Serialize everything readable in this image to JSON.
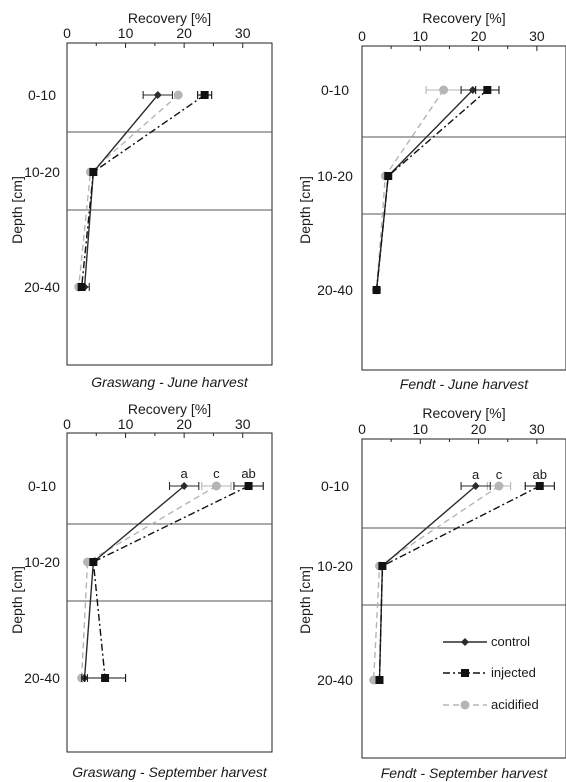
{
  "chart_data": [
    {
      "type": "line",
      "title": "Graswang - June harvest",
      "xlabel": "Recovery [%]",
      "ylabel": "Depth [cm]",
      "xticks": [
        "0",
        "10",
        "20",
        "30"
      ],
      "xlim": [
        0,
        35
      ],
      "categories": [
        "0-10",
        "10-20",
        "20-40"
      ],
      "series": [
        {
          "name": "control",
          "values": [
            15.5,
            4.5,
            3.0
          ],
          "errors": [
            2.5,
            0.3,
            0.8
          ]
        },
        {
          "name": "injected",
          "values": [
            23.5,
            4.5,
            2.5
          ],
          "errors": [
            1.2,
            0.3,
            0.5
          ]
        },
        {
          "name": "acidified",
          "values": [
            19.0,
            4.0,
            2.0
          ],
          "errors": [
            0,
            0,
            0
          ]
        }
      ],
      "significance_labels": [
        "",
        "",
        ""
      ]
    },
    {
      "type": "line",
      "title": "Fendt - June harvest",
      "xlabel": "Recovery [%]",
      "ylabel": "Depth [cm]",
      "xticks": [
        "0",
        "10",
        "20",
        "30"
      ],
      "xlim": [
        0,
        35
      ],
      "categories": [
        "0-10",
        "10-20",
        "20-40"
      ],
      "series": [
        {
          "name": "control",
          "values": [
            19.0,
            4.5,
            2.5
          ],
          "errors": [
            2.0,
            0.3,
            0.3
          ]
        },
        {
          "name": "injected",
          "values": [
            21.5,
            4.5,
            2.5
          ],
          "errors": [
            2.0,
            0.3,
            0.3
          ]
        },
        {
          "name": "acidified",
          "values": [
            14.0,
            4.0,
            2.5
          ],
          "errors": [
            3.0,
            0,
            0
          ]
        }
      ],
      "significance_labels": [
        "",
        "",
        ""
      ]
    },
    {
      "type": "line",
      "title": "Graswang - September harvest",
      "xlabel": "Recovery [%]",
      "ylabel": "Depth [cm]",
      "xticks": [
        "0",
        "10",
        "20",
        "30"
      ],
      "xlim": [
        0,
        35
      ],
      "categories": [
        "0-10",
        "10-20",
        "20-40"
      ],
      "series": [
        {
          "name": "control",
          "values": [
            20.0,
            4.5,
            3.0
          ],
          "errors": [
            2.5,
            0.3,
            0.5
          ]
        },
        {
          "name": "injected",
          "values": [
            31.0,
            4.5,
            6.5
          ],
          "errors": [
            2.5,
            0.3,
            3.5
          ]
        },
        {
          "name": "acidified",
          "values": [
            25.5,
            3.5,
            2.5
          ],
          "errors": [
            2.5,
            0,
            0
          ]
        }
      ],
      "significance_labels": [
        "a",
        "ab",
        "c"
      ]
    },
    {
      "type": "line",
      "title": "Fendt - September harvest",
      "xlabel": "Recovery [%]",
      "ylabel": "Depth [cm]",
      "xticks": [
        "0",
        "10",
        "20",
        "30"
      ],
      "xlim": [
        0,
        35
      ],
      "categories": [
        "0-10",
        "10-20",
        "20-40"
      ],
      "series": [
        {
          "name": "control",
          "values": [
            19.5,
            3.5,
            3.0
          ],
          "errors": [
            2.5,
            0.3,
            0.5
          ]
        },
        {
          "name": "injected",
          "values": [
            30.5,
            3.5,
            3.0
          ],
          "errors": [
            2.5,
            0.3,
            0.5
          ]
        },
        {
          "name": "acidified",
          "values": [
            23.5,
            3.0,
            2.0
          ],
          "errors": [
            2.0,
            0,
            0
          ]
        }
      ],
      "significance_labels": [
        "a",
        "ab",
        "c"
      ]
    }
  ],
  "legend": {
    "entries": [
      "control",
      "injected",
      "acidified"
    ],
    "placement": "bottom-right panel, lower right"
  },
  "colors": {
    "control": "#2b2b2b",
    "injected": "#111111",
    "acidified": "#b5b5b5"
  }
}
